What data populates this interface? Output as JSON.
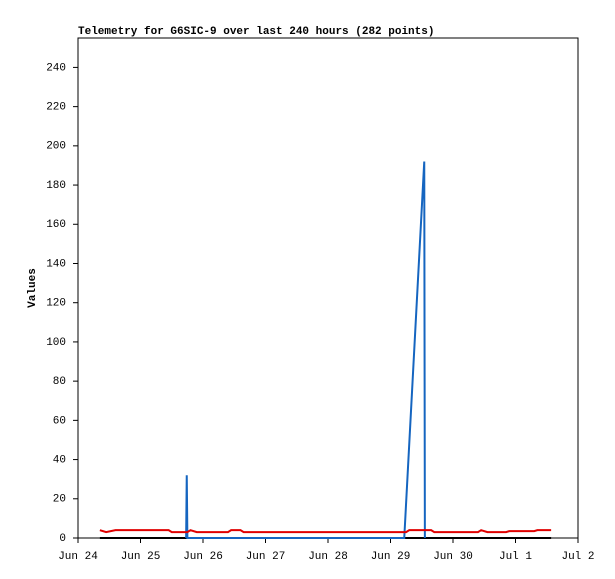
{
  "chart_data": {
    "type": "line",
    "title": "Telemetry for G6SIC-9 over last 240 hours (282 points)",
    "y_label": "Values",
    "xlim": [
      0,
      8
    ],
    "xticks": [
      {
        "value": 0,
        "label": "Jun 24"
      },
      {
        "value": 1,
        "label": "Jun 25"
      },
      {
        "value": 2,
        "label": "Jun 26"
      },
      {
        "value": 3,
        "label": "Jun 27"
      },
      {
        "value": 4,
        "label": "Jun 28"
      },
      {
        "value": 5,
        "label": "Jun 29"
      },
      {
        "value": 6,
        "label": "Jun 30"
      },
      {
        "value": 7,
        "label": "Jul 1"
      },
      {
        "value": 8,
        "label": "Jul 2"
      }
    ],
    "ylim": [
      0,
      255
    ],
    "yticks": [
      0,
      20,
      40,
      60,
      80,
      100,
      120,
      140,
      160,
      180,
      200,
      220,
      240
    ],
    "grid": false,
    "series": [
      {
        "color": "#000000",
        "x": [
          0.35,
          7.57
        ],
        "values": [
          0,
          0
        ]
      },
      {
        "color": "#1565c0",
        "x": [
          1.73,
          1.74,
          1.75,
          5.22,
          5.54,
          5.55
        ],
        "values": [
          0,
          32,
          0,
          0,
          192,
          0
        ]
      },
      {
        "color": "#e00000",
        "x": [
          0.35,
          0.45,
          0.6,
          1.45,
          1.5,
          1.75,
          1.8,
          1.9,
          2.4,
          2.45,
          2.6,
          2.65,
          5.25,
          5.3,
          5.65,
          5.7,
          6.4,
          6.45,
          6.55,
          6.85,
          6.9,
          7.3,
          7.35,
          7.57
        ],
        "values": [
          4,
          3,
          4,
          4,
          3,
          3,
          4,
          3,
          3,
          4,
          4,
          3,
          3,
          4,
          4,
          3,
          3,
          4,
          3,
          3,
          3.5,
          3.5,
          4,
          4
        ]
      }
    ]
  }
}
